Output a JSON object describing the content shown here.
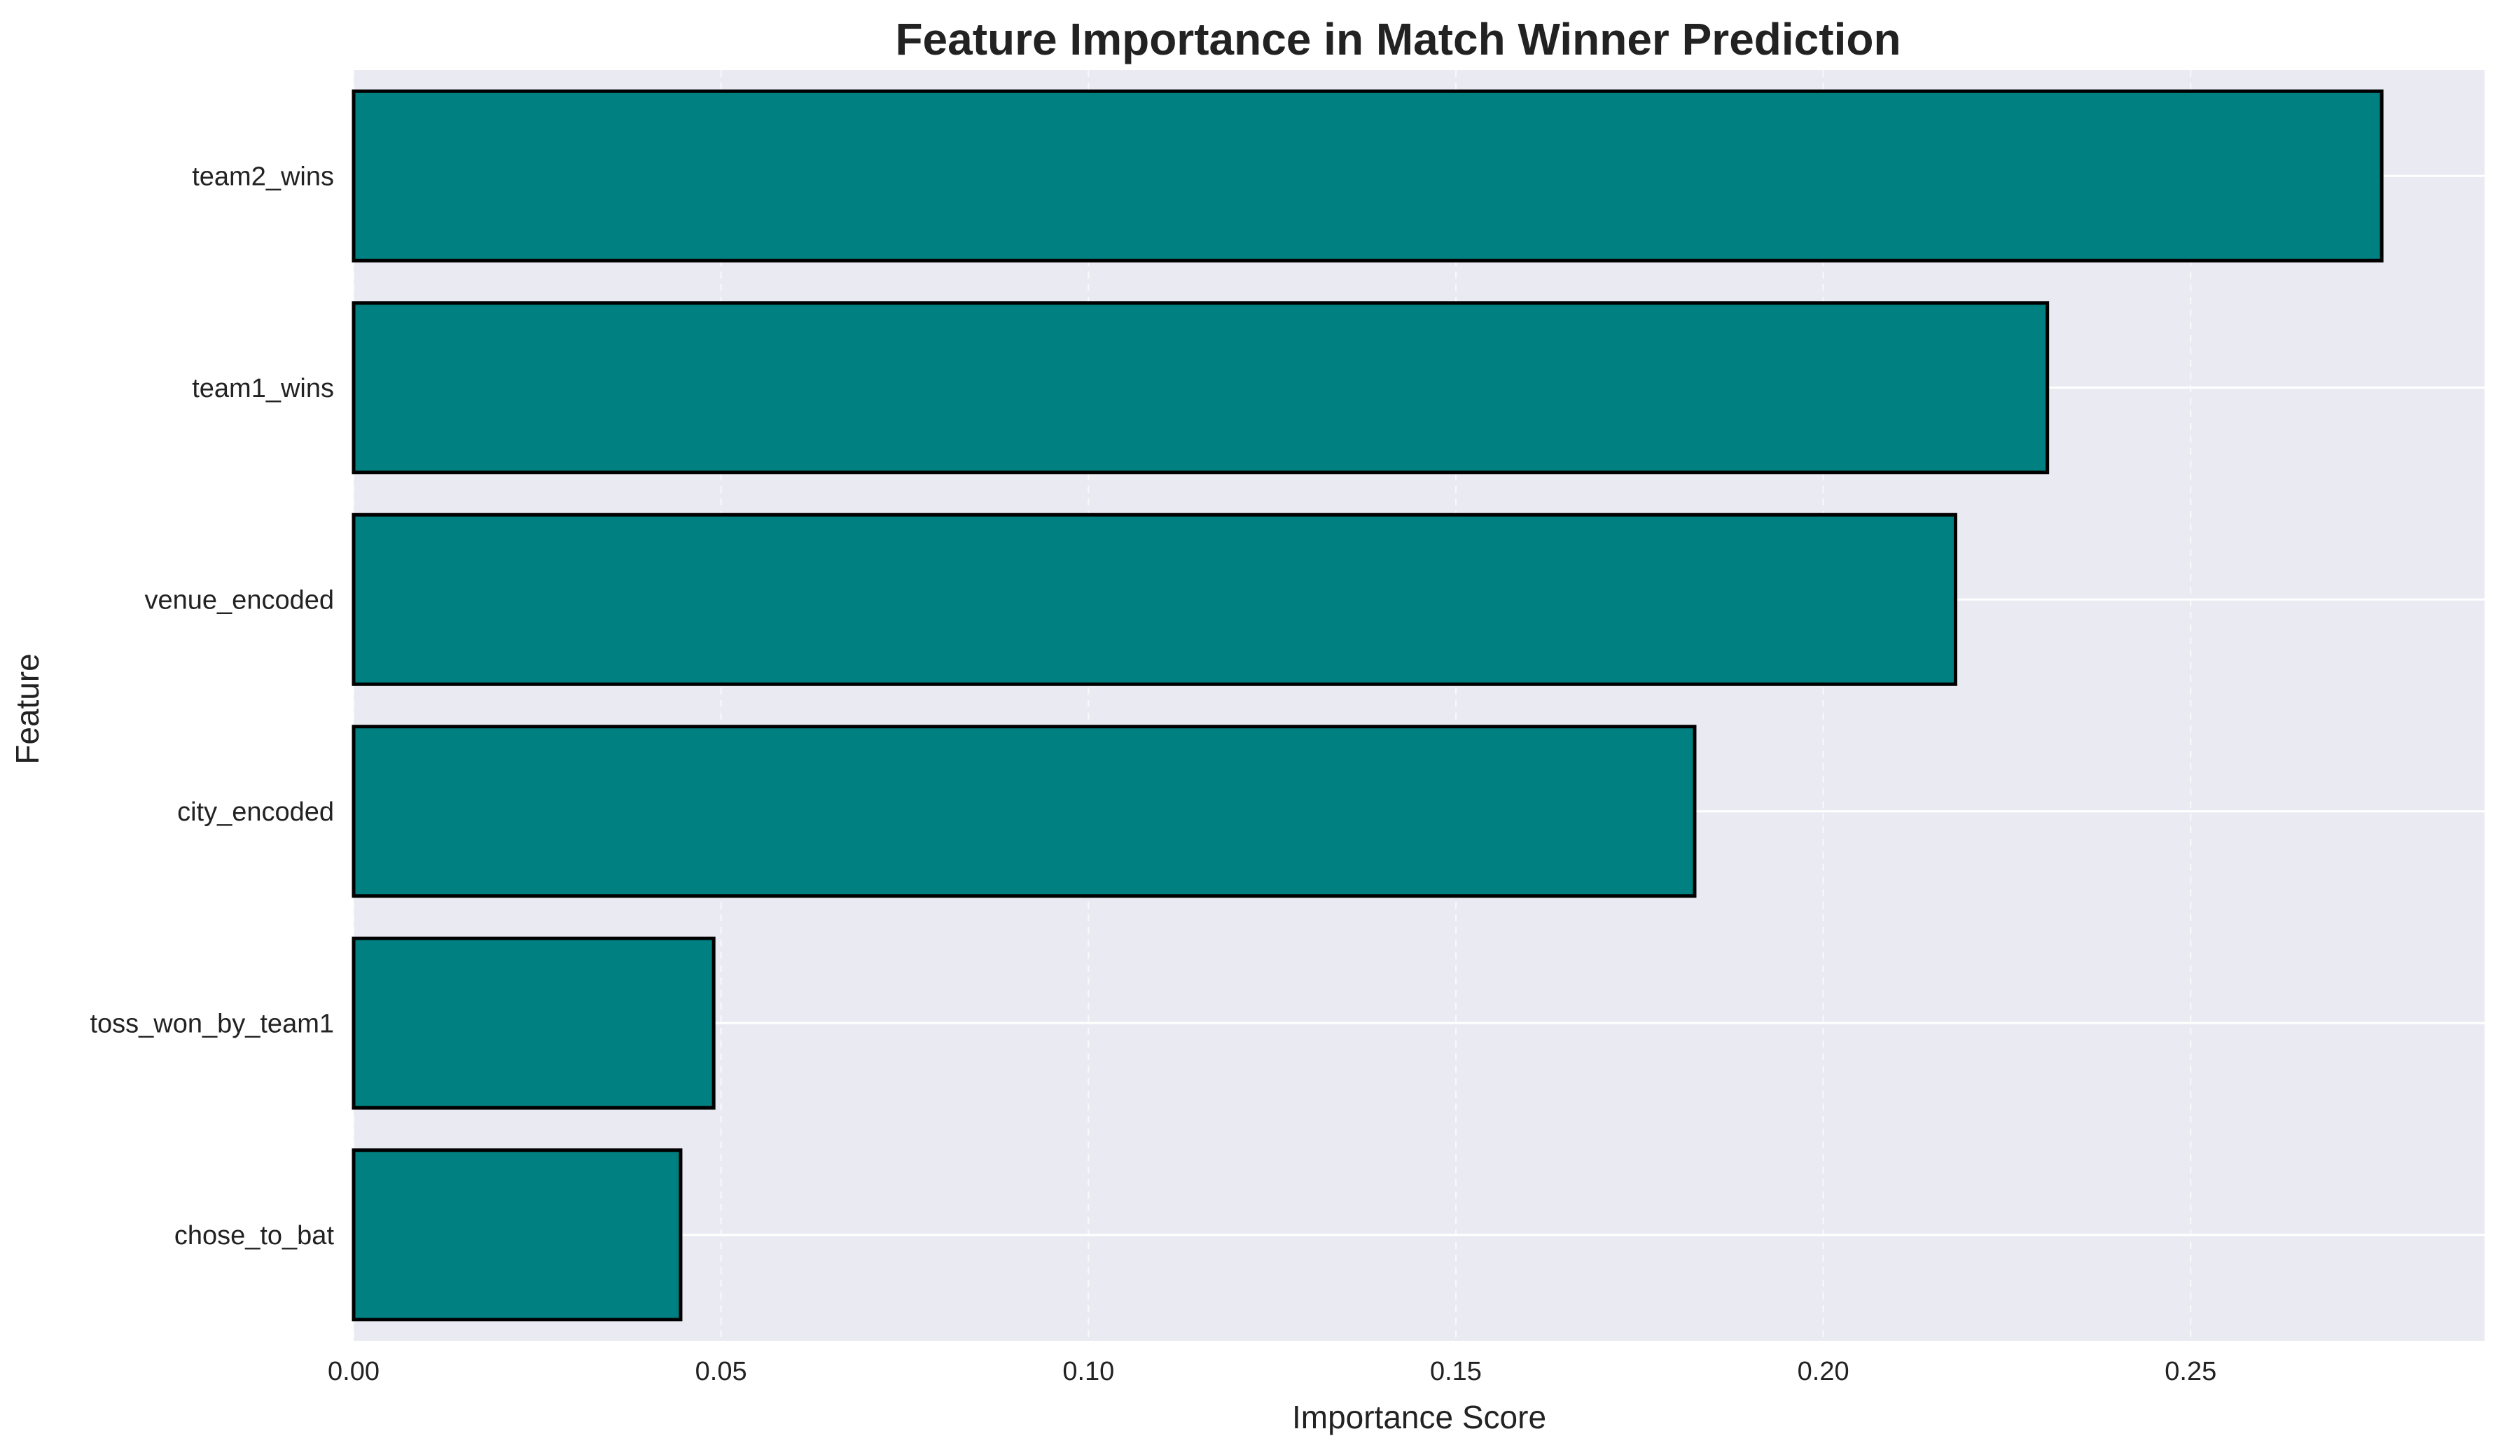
{
  "chart_data": {
    "type": "bar",
    "orientation": "horizontal",
    "title": "Feature Importance in Match Winner Prediction",
    "xlabel": "Importance Score",
    "ylabel": "Feature",
    "categories": [
      "team2_wins",
      "team1_wins",
      "venue_encoded",
      "city_encoded",
      "toss_won_by_team1",
      "chose_to_bat"
    ],
    "values": [
      0.276,
      0.2305,
      0.218,
      0.1825,
      0.049,
      0.0445
    ],
    "xlim": [
      0,
      0.29
    ],
    "xticks": [
      0.0,
      0.05,
      0.1,
      0.15,
      0.2,
      0.25
    ],
    "xtick_labels": [
      "0.00",
      "0.05",
      "0.10",
      "0.15",
      "0.20",
      "0.25"
    ],
    "grid": true,
    "legend": "none",
    "colors": {
      "bar_fill": "#008080",
      "bar_edge": "#000000",
      "plot_background": "#EAEAF2",
      "grid_major": "#FFFFFF",
      "text": "#222222"
    }
  }
}
